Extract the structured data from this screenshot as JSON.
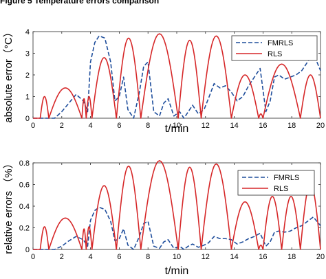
{
  "caption": "Figure 5  Temperature errors comparison",
  "chart_data": [
    {
      "type": "line",
      "xlabel": "t/min",
      "ylabel": "absolute error（°C）",
      "xlim": [
        0,
        20
      ],
      "ylim": [
        0,
        4
      ],
      "xticks": [
        "0",
        "2",
        "4",
        "6",
        "8",
        "10",
        "12",
        "14",
        "16",
        "18",
        "20"
      ],
      "yticks": [
        "0",
        "1",
        "2",
        "3",
        "4"
      ],
      "legend_position": "top-right",
      "grid": false,
      "series": [
        {
          "name": "FMRLS",
          "color": "#1f4e9c",
          "style": "dashed",
          "x": [
            0,
            0.5,
            1.0,
            1.5,
            2.0,
            2.5,
            3.0,
            3.5,
            3.8,
            4.0,
            4.3,
            4.6,
            5.0,
            5.4,
            5.7,
            6.0,
            6.3,
            6.6,
            7.0,
            7.4,
            7.7,
            8.0,
            8.4,
            8.8,
            9.1,
            9.4,
            9.8,
            10.2,
            10.5,
            10.8,
            11.1,
            11.5,
            11.9,
            12.2,
            12.6,
            13.0,
            13.4,
            13.8,
            14.2,
            14.6,
            15.0,
            15.4,
            15.8,
            16.2,
            16.5,
            16.8,
            17.1,
            17.5,
            17.9,
            18.3,
            18.7,
            19.1,
            19.5,
            20.0
          ],
          "y": [
            0,
            0,
            0,
            0,
            0.3,
            0.7,
            1.1,
            0.8,
            0.3,
            2.6,
            3.5,
            3.8,
            3.7,
            2.6,
            0.8,
            1.0,
            1.9,
            0.4,
            0,
            1.2,
            2.4,
            2.6,
            0.3,
            0.1,
            0.7,
            0.9,
            0.1,
            0.3,
            0,
            0.3,
            0.6,
            0.2,
            0.4,
            0.9,
            1.6,
            1.4,
            1.5,
            1.2,
            0.8,
            1.0,
            1.5,
            1.9,
            2.3,
            0.3,
            0.8,
            1.9,
            2.0,
            1.8,
            1.9,
            2.0,
            2.2,
            2.6,
            3.0,
            2.2
          ]
        },
        {
          "name": "RLS",
          "color": "#d62728",
          "style": "solid",
          "arches": [
            [
              0.5,
              1.1,
              1.0
            ],
            [
              1.1,
              3.4,
              1.4
            ],
            [
              3.4,
              3.7,
              0.9
            ],
            [
              3.7,
              4.1,
              1.0
            ],
            [
              4.1,
              5.8,
              2.8
            ],
            [
              5.8,
              7.5,
              3.7
            ],
            [
              7.5,
              10.1,
              3.9
            ],
            [
              10.1,
              11.7,
              3.6
            ],
            [
              11.7,
              13.8,
              3.8
            ],
            [
              13.8,
              15.7,
              2.0
            ],
            [
              15.7,
              16.0,
              0.2
            ],
            [
              16.0,
              18.6,
              2.5
            ],
            [
              18.6,
              20.0,
              2.0
            ]
          ]
        }
      ]
    },
    {
      "type": "line",
      "xlabel": "t/min",
      "ylabel": "relative errors （%）",
      "xlim": [
        0,
        20
      ],
      "ylim": [
        0,
        0.8
      ],
      "xticks": [
        "0",
        "2",
        "4",
        "6",
        "8",
        "10",
        "12",
        "14",
        "16",
        "18",
        "20"
      ],
      "yticks": [
        "0",
        "0.2",
        "0.4",
        "0.6",
        "0.8"
      ],
      "legend_position": "top-right",
      "grid": false,
      "series": [
        {
          "name": "FMRLS",
          "color": "#1f4e9c",
          "style": "dashed",
          "x": [
            0,
            0.5,
            1.0,
            1.5,
            2.0,
            2.5,
            3.0,
            3.5,
            3.8,
            4.0,
            4.3,
            4.6,
            5.0,
            5.4,
            5.7,
            6.0,
            6.3,
            6.6,
            7.0,
            7.4,
            7.7,
            8.0,
            8.4,
            8.8,
            9.1,
            9.4,
            9.8,
            10.2,
            10.5,
            10.8,
            11.1,
            11.5,
            11.9,
            12.2,
            12.6,
            13.0,
            13.4,
            13.8,
            14.2,
            14.6,
            15.0,
            15.4,
            15.8,
            16.2,
            16.5,
            16.8,
            17.1,
            17.5,
            17.9,
            18.3,
            18.7,
            19.1,
            19.5,
            20.0
          ],
          "y": [
            0,
            0,
            0,
            0,
            0.03,
            0.08,
            0.12,
            0.09,
            0.03,
            0.27,
            0.36,
            0.39,
            0.37,
            0.26,
            0.08,
            0.1,
            0.19,
            0.04,
            0,
            0.12,
            0.24,
            0.26,
            0.03,
            0.01,
            0.07,
            0.09,
            0.01,
            0.03,
            0,
            0.03,
            0.05,
            0.02,
            0.04,
            0.06,
            0.12,
            0.1,
            0.1,
            0.09,
            0.05,
            0.07,
            0.1,
            0.12,
            0.15,
            0.03,
            0.07,
            0.16,
            0.17,
            0.16,
            0.17,
            0.2,
            0.22,
            0.26,
            0.3,
            0.22
          ]
        },
        {
          "name": "RLS",
          "color": "#d62728",
          "style": "solid",
          "arches": [
            [
              0.5,
              1.1,
              0.21
            ],
            [
              1.1,
              3.4,
              0.29
            ],
            [
              3.4,
              3.7,
              0.19
            ],
            [
              3.7,
              4.1,
              0.21
            ],
            [
              4.1,
              5.8,
              0.59
            ],
            [
              5.8,
              7.5,
              0.77
            ],
            [
              7.5,
              10.1,
              0.82
            ],
            [
              10.1,
              11.7,
              0.76
            ],
            [
              11.7,
              13.8,
              0.79
            ],
            [
              13.8,
              15.7,
              0.44
            ],
            [
              15.7,
              16.0,
              0.04
            ],
            [
              16.0,
              17.3,
              0.49
            ],
            [
              17.3,
              18.6,
              0.49
            ],
            [
              18.6,
              20.0,
              0.61
            ]
          ]
        }
      ]
    }
  ]
}
